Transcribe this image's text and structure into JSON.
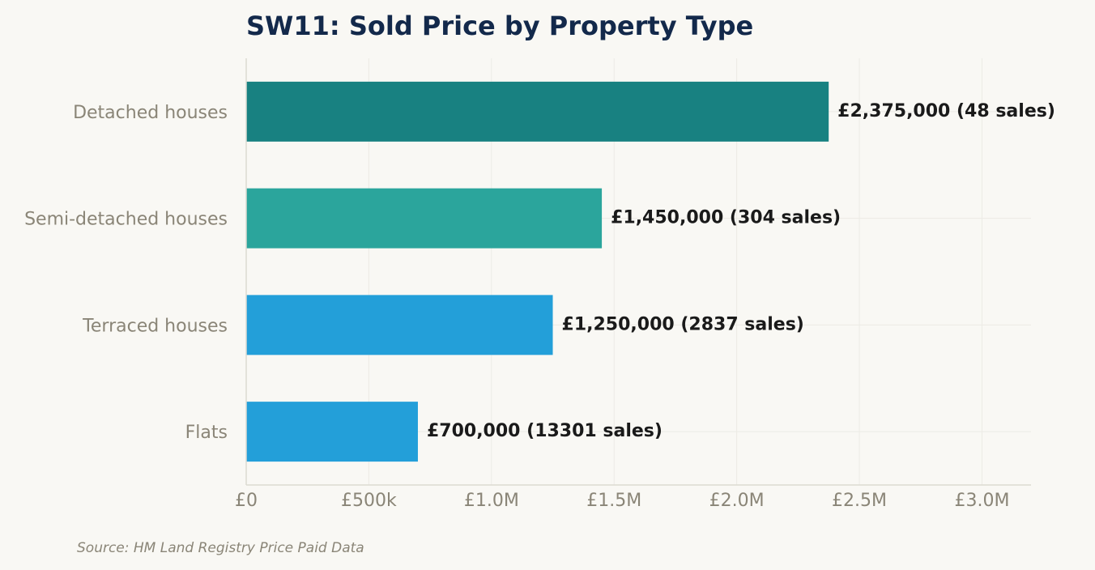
{
  "chart_data": {
    "type": "bar",
    "orientation": "horizontal",
    "title": "SW11: Sold Price by Property Type",
    "categories": [
      "Detached houses",
      "Semi-detached houses",
      "Terraced houses",
      "Flats"
    ],
    "values": [
      2375000,
      1450000,
      1250000,
      700000
    ],
    "sales": [
      48,
      304,
      2837,
      13301
    ],
    "data_labels": [
      "£2,375,000  (48 sales)",
      "£1,450,000  (304 sales)",
      "£1,250,000  (2837 sales)",
      "£700,000  (13301 sales)"
    ],
    "colors": [
      "#188181",
      "#2ba59c",
      "#239fd9",
      "#239fd9"
    ],
    "xlim": [
      0,
      3200000
    ],
    "x_ticks": [
      0,
      500000,
      1000000,
      1500000,
      2000000,
      2500000,
      3000000
    ],
    "x_tick_labels": [
      "£0",
      "£500k",
      "£1.0M",
      "£1.5M",
      "£2.0M",
      "£2.5M",
      "£3.0M"
    ],
    "xlabel": "",
    "ylabel": "",
    "grid": true,
    "source": "Source: HM Land Registry Price Paid Data"
  }
}
